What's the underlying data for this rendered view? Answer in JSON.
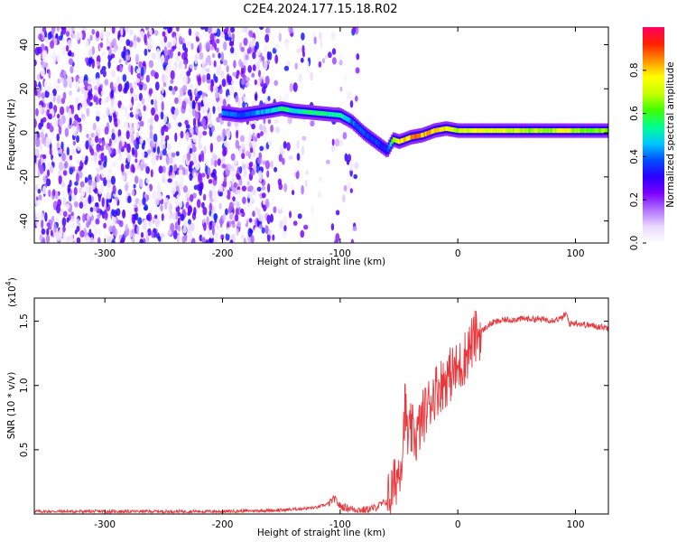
{
  "title": "C2E4.2024.177.15.18.R02",
  "chart_data": [
    {
      "type": "heatmap",
      "name": "spectrogram",
      "xlabel": "Height of straight line (km)",
      "ylabel": "Frequency (Hz)",
      "xlim": [
        -360,
        128
      ],
      "ylim": [
        -50,
        48
      ],
      "x_ticks": [
        -300,
        -200,
        -100,
        0,
        100
      ],
      "y_ticks": [
        -40,
        -20,
        0,
        20,
        40
      ],
      "colorbar": {
        "label": "Normalized spectral amplitude",
        "range": [
          0,
          1
        ],
        "ticks": [
          0.0,
          0.2,
          0.4,
          0.6,
          0.8
        ],
        "colormap": [
          "#ffffff",
          "#e8d8ff",
          "#b070ff",
          "#7a00ff",
          "#2a00ff",
          "#0050ff",
          "#00c8ff",
          "#00ff90",
          "#40ff00",
          "#c8ff00",
          "#ffff00",
          "#ff9000",
          "#ff2000",
          "#ff0060"
        ]
      },
      "ridge": {
        "description_free": true,
        "x": [
          -200,
          -185,
          -160,
          -150,
          -140,
          -120,
          -100,
          -90,
          -80,
          -70,
          -60,
          -55,
          -50,
          -40,
          -30,
          -20,
          -10,
          0,
          20,
          50,
          80,
          90,
          100,
          128
        ],
        "y": [
          9,
          8,
          10,
          11,
          10,
          9,
          8,
          5,
          0,
          -4,
          -8,
          -3,
          -4,
          -2,
          -1,
          1,
          2,
          1,
          1,
          1,
          1,
          1,
          1,
          1
        ],
        "amplitude": [
          0.45,
          0.4,
          0.5,
          0.6,
          0.55,
          0.6,
          0.55,
          0.45,
          0.4,
          0.4,
          0.35,
          0.7,
          0.85,
          0.9,
          0.9,
          0.85,
          0.8,
          0.75,
          0.8,
          0.75,
          0.7,
          0.85,
          0.7,
          0.7
        ]
      }
    },
    {
      "type": "line",
      "name": "snr",
      "xlabel": "Height of straight line (km)",
      "ylabel": "SNR (10 * v/v)",
      "multiplier": "(x10",
      "multiplier_exp": "4",
      "multiplier_close": ")",
      "xlim": [
        -360,
        128
      ],
      "ylim": [
        0,
        1.68
      ],
      "x_ticks": [
        -300,
        -200,
        -100,
        0,
        100
      ],
      "y_ticks": [
        0.5,
        1.0,
        1.5
      ],
      "y_tick_labels": [
        "0.5",
        "1.0",
        "1.5"
      ],
      "color": "#e8383c",
      "x": [
        -360,
        -300,
        -200,
        -150,
        -120,
        -110,
        -105,
        -100,
        -90,
        -80,
        -70,
        -60,
        -55,
        -50,
        -47,
        -45,
        -42,
        -40,
        -35,
        -30,
        -25,
        -20,
        -15,
        -10,
        -5,
        0,
        5,
        10,
        15,
        20,
        25,
        30,
        40,
        60,
        80,
        88,
        92,
        95,
        100,
        110,
        128
      ],
      "y": [
        0.02,
        0.02,
        0.02,
        0.03,
        0.05,
        0.08,
        0.12,
        0.06,
        0.04,
        0.03,
        0.05,
        0.1,
        0.2,
        0.35,
        0.5,
        0.85,
        0.55,
        0.65,
        0.6,
        0.75,
        0.85,
        0.95,
        1.0,
        1.05,
        1.1,
        1.12,
        1.2,
        1.3,
        1.38,
        1.42,
        1.46,
        1.49,
        1.51,
        1.52,
        1.51,
        1.52,
        1.56,
        1.48,
        1.49,
        1.47,
        1.45
      ]
    }
  ]
}
